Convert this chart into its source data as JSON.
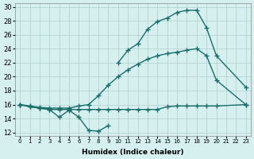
{
  "xlabel": "Humidex (Indice chaleur)",
  "x_values": [
    0,
    1,
    2,
    3,
    4,
    5,
    6,
    7,
    8,
    9,
    10,
    11,
    12,
    13,
    14,
    15,
    16,
    17,
    18,
    19,
    20,
    21,
    22,
    23
  ],
  "ylim": [
    12,
    30
  ],
  "yticks": [
    12,
    14,
    16,
    18,
    20,
    22,
    24,
    26,
    28,
    30
  ],
  "bg_color": "#d6f0f0",
  "grid_color": "#aecece",
  "line_color": "#1a6e6a",
  "line_width": 1.0,
  "marker": "+",
  "ms": 4,
  "upper_x": [
    10,
    11,
    12,
    13,
    14,
    15,
    16,
    17,
    18,
    19,
    20,
    23
  ],
  "upper_y": [
    22.0,
    23.8,
    24.7,
    26.8,
    27.9,
    28.4,
    29.2,
    29.5,
    29.5,
    27.0,
    23.0,
    18.5
  ],
  "mid_x": [
    0,
    1,
    2,
    3,
    4,
    5,
    6,
    7,
    8,
    9,
    10,
    11,
    12,
    13,
    14,
    15,
    16,
    17,
    18,
    19,
    20,
    23
  ],
  "mid_y": [
    16.0,
    15.8,
    15.6,
    15.5,
    15.5,
    15.5,
    15.8,
    16.0,
    17.3,
    18.8,
    20.0,
    21.0,
    21.8,
    22.5,
    23.0,
    23.3,
    23.5,
    23.8,
    24.0,
    23.0,
    19.5,
    16.0
  ],
  "low_x": [
    0,
    1,
    2,
    3,
    4,
    5,
    6,
    7,
    8,
    9,
    10,
    11,
    12,
    13,
    14,
    15,
    16,
    17,
    18,
    19,
    20,
    23
  ],
  "low_y": [
    16.0,
    15.7,
    15.5,
    15.3,
    15.3,
    15.3,
    15.3,
    15.3,
    15.3,
    15.3,
    15.3,
    15.3,
    15.3,
    15.3,
    15.3,
    15.7,
    15.8,
    15.8,
    15.8,
    15.8,
    15.8,
    16.0
  ],
  "dip_x": [
    0,
    1,
    2,
    3,
    4,
    5,
    6,
    7,
    8,
    9
  ],
  "dip_y": [
    16.0,
    15.7,
    15.5,
    15.3,
    14.2,
    15.2,
    14.2,
    12.3,
    12.2,
    13.0
  ]
}
